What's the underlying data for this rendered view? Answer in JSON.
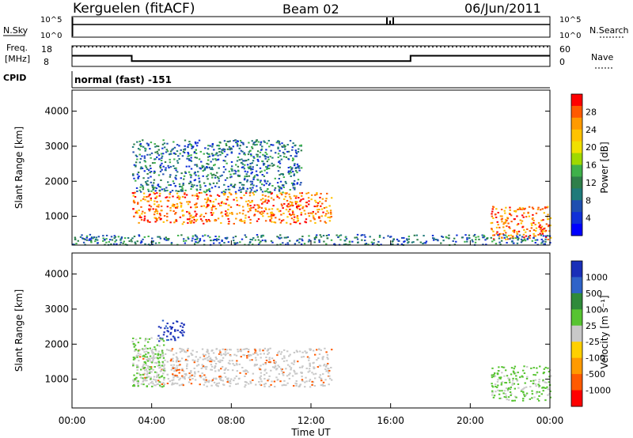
{
  "header": {
    "station": "Kerguelen (fitACF)",
    "beam": "Beam 02",
    "date": "06/Jun/2011"
  },
  "sky_panel": {
    "left_label": "N.Sky",
    "right_label": "N.Search",
    "left_ticks": [
      "10^5",
      "10^0"
    ],
    "right_ticks": [
      "10^5",
      "10^0"
    ]
  },
  "freq_panel": {
    "left_label_1": "Freq.",
    "left_label_2": "[MHz]",
    "right_label": "Nave",
    "left_ticks": [
      "18",
      "8"
    ],
    "right_ticks": [
      "60",
      "0"
    ],
    "freq_steps": [
      {
        "t": 0.0,
        "f": 13.2
      },
      {
        "t": 3.0,
        "f": 10.6
      },
      {
        "t": 17.0,
        "f": 13.2
      },
      {
        "t": 24.0,
        "f": 13.2
      }
    ],
    "nave_level": 57
  },
  "cpid": {
    "label": "CPID",
    "value": "normal (fast) -151"
  },
  "chart_data": [
    {
      "type": "heatmap",
      "title": "",
      "xlabel": "Time UT",
      "ylabel": "Slant Range [km]",
      "xlim": [
        0,
        24
      ],
      "ylim": [
        180,
        4600
      ],
      "x_ticks": [
        "00:00",
        "04:00",
        "08:00",
        "12:00",
        "16:00",
        "20:00",
        "00:00"
      ],
      "y_ticks": [
        "1000",
        "2000",
        "3000",
        "4000"
      ],
      "y_tick_values": [
        1000,
        2000,
        3000,
        4000
      ],
      "colorbar": {
        "label": "Power [dB]",
        "tick_labels": [
          "28",
          "24",
          "20",
          "16",
          "12",
          "8",
          "4"
        ],
        "colors": [
          "#ff0000",
          "#ff5a00",
          "#ff9a00",
          "#ffc300",
          "#f0e000",
          "#9fd900",
          "#3fb14a",
          "#2f7f4a",
          "#1f7a7a",
          "#1f4fb0",
          "#1030d8",
          "#0000ff"
        ]
      },
      "regions": [
        {
          "name": "main arc",
          "t_start": 3.0,
          "t_end": 13.0,
          "range_km": [
            800,
            1700
          ],
          "level_db": 24
        },
        {
          "name": "upper echoes",
          "t_start": 3.0,
          "t_end": 11.5,
          "range_km": [
            1700,
            3200
          ],
          "level_db": 10
        },
        {
          "name": "evening echoes",
          "t_start": 21.0,
          "t_end": 24.0,
          "range_km": [
            350,
            1300
          ],
          "level_db": 24
        },
        {
          "name": "near ground scatter",
          "t_start": 0.0,
          "t_end": 24.0,
          "range_km": [
            200,
            500
          ],
          "level_db": 6
        }
      ]
    },
    {
      "type": "heatmap",
      "title": "",
      "xlabel": "Time UT",
      "ylabel": "Slant Range [km]",
      "xlim": [
        0,
        24
      ],
      "ylim": [
        180,
        4600
      ],
      "x_ticks": [
        "00:00",
        "04:00",
        "08:00",
        "12:00",
        "16:00",
        "20:00",
        "00:00"
      ],
      "y_ticks": [
        "1000",
        "2000",
        "3000",
        "4000"
      ],
      "y_tick_values": [
        1000,
        2000,
        3000,
        4000
      ],
      "colorbar": {
        "label": "Velocity [m s⁻¹]",
        "tick_labels": [
          "1000",
          "500",
          "100",
          "25",
          "-25",
          "-100",
          "-500",
          "-1000"
        ],
        "colors": [
          "#1a2fb8",
          "#2f63c8",
          "#2f8a3a",
          "#57c431",
          "#c8c8c8",
          "#ffd000",
          "#ff9a00",
          "#ff5a00",
          "#ff0000"
        ]
      },
      "regions": [
        {
          "name": "main arc",
          "t_start": 3.0,
          "t_end": 13.0,
          "range_km": [
            800,
            1900
          ],
          "velocity": 0
        },
        {
          "name": "blue patch",
          "t_start": 4.3,
          "t_end": 5.6,
          "range_km": [
            2100,
            2700
          ],
          "velocity": 900
        },
        {
          "name": "green patches",
          "t_start": 3.0,
          "t_end": 4.6,
          "range_km": [
            800,
            2200
          ],
          "velocity": 120
        },
        {
          "name": "evening echoes",
          "t_start": 21.0,
          "t_end": 24.0,
          "range_km": [
            400,
            1400
          ],
          "velocity": 150
        }
      ]
    }
  ]
}
